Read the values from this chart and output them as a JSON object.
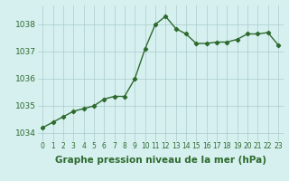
{
  "x": [
    0,
    1,
    2,
    3,
    4,
    5,
    6,
    7,
    8,
    9,
    10,
    11,
    12,
    13,
    14,
    15,
    16,
    17,
    18,
    19,
    20,
    21,
    22,
    23
  ],
  "y": [
    1034.2,
    1034.4,
    1034.6,
    1034.8,
    1034.9,
    1035.0,
    1035.25,
    1035.35,
    1035.35,
    1036.0,
    1037.1,
    1038.0,
    1038.3,
    1037.85,
    1037.65,
    1037.3,
    1037.3,
    1037.35,
    1037.35,
    1037.45,
    1037.65,
    1037.65,
    1037.7,
    1037.25
  ],
  "line_color": "#2d6a2d",
  "marker": "D",
  "marker_size": 2.2,
  "bg_color": "#d6f0f0",
  "grid_color": "#aacccc",
  "xlabel": "Graphe pression niveau de la mer (hPa)",
  "xlabel_fontsize": 7.5,
  "ytick_labels": [
    "1034",
    "1035",
    "1036",
    "1037",
    "1038"
  ],
  "ytick_values": [
    1034,
    1035,
    1036,
    1037,
    1038
  ],
  "ylim": [
    1033.7,
    1038.7
  ],
  "xlim": [
    -0.5,
    23.5
  ],
  "xtick_fontsize": 5.5,
  "ytick_fontsize": 6.5,
  "line_width": 1.0,
  "fig_bg_color": "#d6f0f0"
}
